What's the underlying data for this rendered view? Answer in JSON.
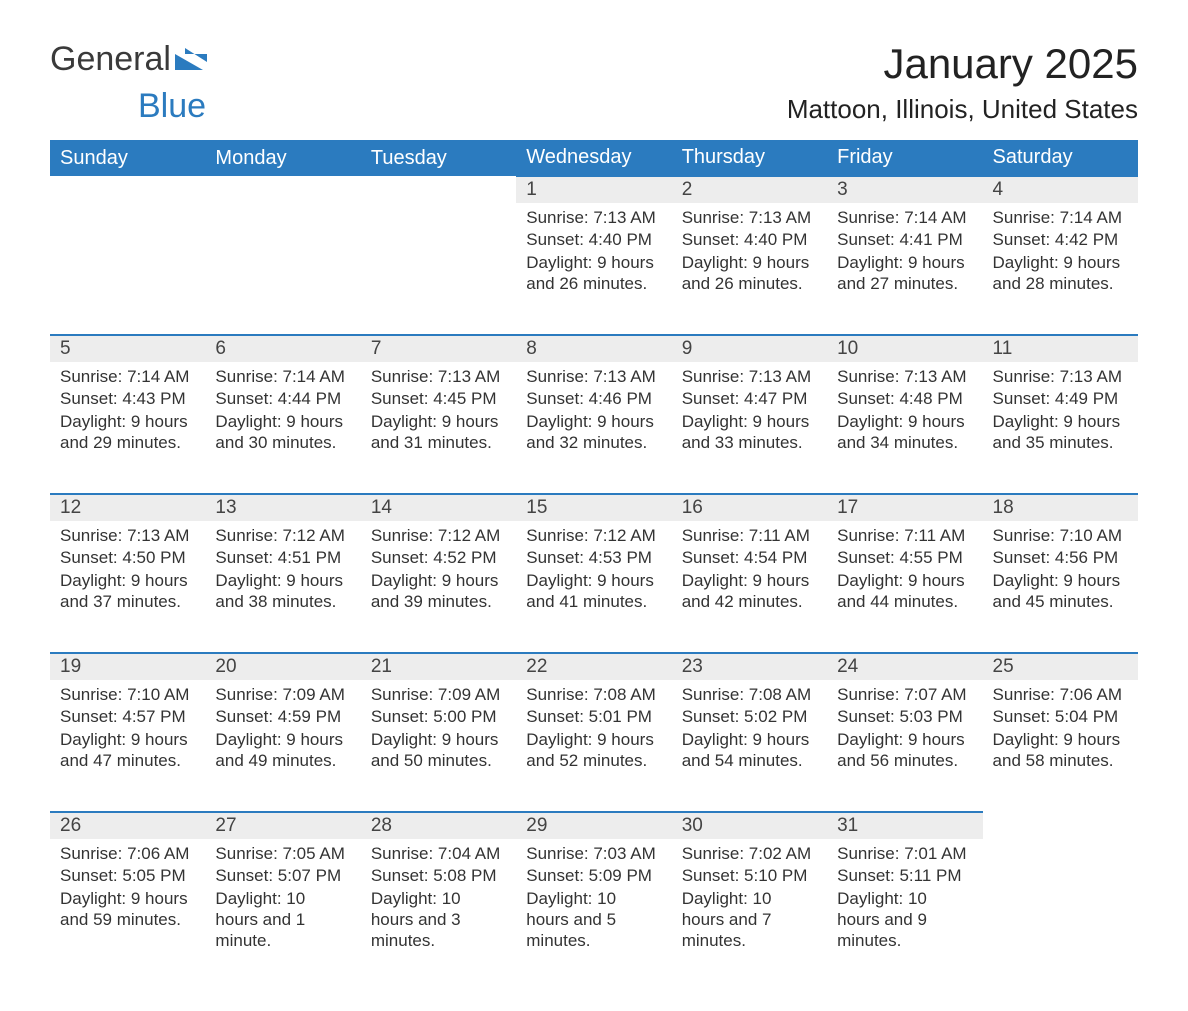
{
  "logo": {
    "word1": "General",
    "word2": "Blue"
  },
  "header": {
    "month_title": "January 2025",
    "location": "Mattoon, Illinois, United States"
  },
  "colors": {
    "header_bg": "#2b7bbf",
    "header_text": "#ffffff",
    "daynum_bg": "#ededed",
    "row_border": "#2b7bbf",
    "body_text": "#333333"
  },
  "weekdays": [
    "Sunday",
    "Monday",
    "Tuesday",
    "Wednesday",
    "Thursday",
    "Friday",
    "Saturday"
  ],
  "weeks": [
    [
      null,
      null,
      null,
      {
        "n": "1",
        "sunrise": "Sunrise: 7:13 AM",
        "sunset": "Sunset: 4:40 PM",
        "daylight": "Daylight: 9 hours and 26 minutes."
      },
      {
        "n": "2",
        "sunrise": "Sunrise: 7:13 AM",
        "sunset": "Sunset: 4:40 PM",
        "daylight": "Daylight: 9 hours and 26 minutes."
      },
      {
        "n": "3",
        "sunrise": "Sunrise: 7:14 AM",
        "sunset": "Sunset: 4:41 PM",
        "daylight": "Daylight: 9 hours and 27 minutes."
      },
      {
        "n": "4",
        "sunrise": "Sunrise: 7:14 AM",
        "sunset": "Sunset: 4:42 PM",
        "daylight": "Daylight: 9 hours and 28 minutes."
      }
    ],
    [
      {
        "n": "5",
        "sunrise": "Sunrise: 7:14 AM",
        "sunset": "Sunset: 4:43 PM",
        "daylight": "Daylight: 9 hours and 29 minutes."
      },
      {
        "n": "6",
        "sunrise": "Sunrise: 7:14 AM",
        "sunset": "Sunset: 4:44 PM",
        "daylight": "Daylight: 9 hours and 30 minutes."
      },
      {
        "n": "7",
        "sunrise": "Sunrise: 7:13 AM",
        "sunset": "Sunset: 4:45 PM",
        "daylight": "Daylight: 9 hours and 31 minutes."
      },
      {
        "n": "8",
        "sunrise": "Sunrise: 7:13 AM",
        "sunset": "Sunset: 4:46 PM",
        "daylight": "Daylight: 9 hours and 32 minutes."
      },
      {
        "n": "9",
        "sunrise": "Sunrise: 7:13 AM",
        "sunset": "Sunset: 4:47 PM",
        "daylight": "Daylight: 9 hours and 33 minutes."
      },
      {
        "n": "10",
        "sunrise": "Sunrise: 7:13 AM",
        "sunset": "Sunset: 4:48 PM",
        "daylight": "Daylight: 9 hours and 34 minutes."
      },
      {
        "n": "11",
        "sunrise": "Sunrise: 7:13 AM",
        "sunset": "Sunset: 4:49 PM",
        "daylight": "Daylight: 9 hours and 35 minutes."
      }
    ],
    [
      {
        "n": "12",
        "sunrise": "Sunrise: 7:13 AM",
        "sunset": "Sunset: 4:50 PM",
        "daylight": "Daylight: 9 hours and 37 minutes."
      },
      {
        "n": "13",
        "sunrise": "Sunrise: 7:12 AM",
        "sunset": "Sunset: 4:51 PM",
        "daylight": "Daylight: 9 hours and 38 minutes."
      },
      {
        "n": "14",
        "sunrise": "Sunrise: 7:12 AM",
        "sunset": "Sunset: 4:52 PM",
        "daylight": "Daylight: 9 hours and 39 minutes."
      },
      {
        "n": "15",
        "sunrise": "Sunrise: 7:12 AM",
        "sunset": "Sunset: 4:53 PM",
        "daylight": "Daylight: 9 hours and 41 minutes."
      },
      {
        "n": "16",
        "sunrise": "Sunrise: 7:11 AM",
        "sunset": "Sunset: 4:54 PM",
        "daylight": "Daylight: 9 hours and 42 minutes."
      },
      {
        "n": "17",
        "sunrise": "Sunrise: 7:11 AM",
        "sunset": "Sunset: 4:55 PM",
        "daylight": "Daylight: 9 hours and 44 minutes."
      },
      {
        "n": "18",
        "sunrise": "Sunrise: 7:10 AM",
        "sunset": "Sunset: 4:56 PM",
        "daylight": "Daylight: 9 hours and 45 minutes."
      }
    ],
    [
      {
        "n": "19",
        "sunrise": "Sunrise: 7:10 AM",
        "sunset": "Sunset: 4:57 PM",
        "daylight": "Daylight: 9 hours and 47 minutes."
      },
      {
        "n": "20",
        "sunrise": "Sunrise: 7:09 AM",
        "sunset": "Sunset: 4:59 PM",
        "daylight": "Daylight: 9 hours and 49 minutes."
      },
      {
        "n": "21",
        "sunrise": "Sunrise: 7:09 AM",
        "sunset": "Sunset: 5:00 PM",
        "daylight": "Daylight: 9 hours and 50 minutes."
      },
      {
        "n": "22",
        "sunrise": "Sunrise: 7:08 AM",
        "sunset": "Sunset: 5:01 PM",
        "daylight": "Daylight: 9 hours and 52 minutes."
      },
      {
        "n": "23",
        "sunrise": "Sunrise: 7:08 AM",
        "sunset": "Sunset: 5:02 PM",
        "daylight": "Daylight: 9 hours and 54 minutes."
      },
      {
        "n": "24",
        "sunrise": "Sunrise: 7:07 AM",
        "sunset": "Sunset: 5:03 PM",
        "daylight": "Daylight: 9 hours and 56 minutes."
      },
      {
        "n": "25",
        "sunrise": "Sunrise: 7:06 AM",
        "sunset": "Sunset: 5:04 PM",
        "daylight": "Daylight: 9 hours and 58 minutes."
      }
    ],
    [
      {
        "n": "26",
        "sunrise": "Sunrise: 7:06 AM",
        "sunset": "Sunset: 5:05 PM",
        "daylight": "Daylight: 9 hours and 59 minutes."
      },
      {
        "n": "27",
        "sunrise": "Sunrise: 7:05 AM",
        "sunset": "Sunset: 5:07 PM",
        "daylight": "Daylight: 10 hours and 1 minute."
      },
      {
        "n": "28",
        "sunrise": "Sunrise: 7:04 AM",
        "sunset": "Sunset: 5:08 PM",
        "daylight": "Daylight: 10 hours and 3 minutes."
      },
      {
        "n": "29",
        "sunrise": "Sunrise: 7:03 AM",
        "sunset": "Sunset: 5:09 PM",
        "daylight": "Daylight: 10 hours and 5 minutes."
      },
      {
        "n": "30",
        "sunrise": "Sunrise: 7:02 AM",
        "sunset": "Sunset: 5:10 PM",
        "daylight": "Daylight: 10 hours and 7 minutes."
      },
      {
        "n": "31",
        "sunrise": "Sunrise: 7:01 AM",
        "sunset": "Sunset: 5:11 PM",
        "daylight": "Daylight: 10 hours and 9 minutes."
      },
      null
    ]
  ]
}
